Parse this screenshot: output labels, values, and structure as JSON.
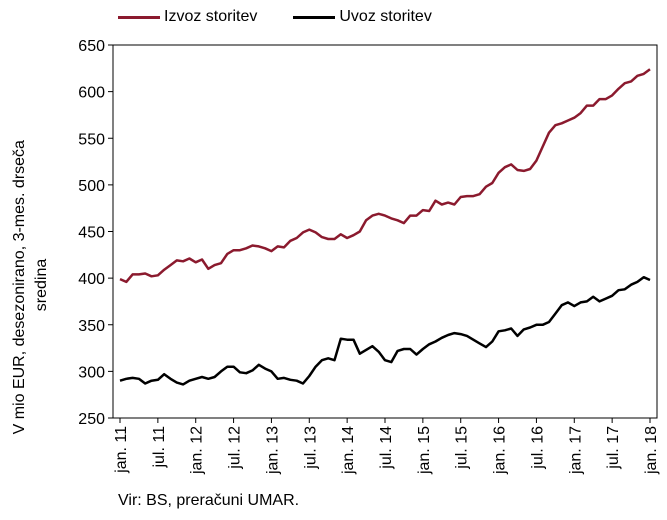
{
  "source_note": "Vir: BS, preračuni UMAR.",
  "chart_data": {
    "type": "line",
    "ylabel_lines": [
      "V mio EUR, desezonirano, 3-mes. drseča",
      "sredina"
    ],
    "ylim": [
      250,
      650
    ],
    "yticks": [
      250,
      300,
      350,
      400,
      450,
      500,
      550,
      600,
      650
    ],
    "grid": false,
    "legend_position": "top-left",
    "x_tick_labels": [
      "jan. 11",
      "jul. 11",
      "jan. 12",
      "jul. 12",
      "jan. 13",
      "jul. 13",
      "jan. 14",
      "jul. 14",
      "jan. 15",
      "jul. 15",
      "jan. 16",
      "jul. 16",
      "jan. 17",
      "jul. 17",
      "jan. 18"
    ],
    "x_start": "2011-01",
    "x_end": "2018-01",
    "series": [
      {
        "name": "Izvoz storitev",
        "color": "#8b1a2e",
        "values": [
          399,
          396,
          404,
          404,
          405,
          402,
          403,
          409,
          414,
          419,
          418,
          421,
          417,
          420,
          410,
          414,
          416,
          426,
          430,
          430,
          432,
          435,
          434,
          432,
          429,
          434,
          433,
          440,
          443,
          449,
          452,
          449,
          444,
          442,
          442,
          447,
          443,
          446,
          450,
          462,
          467,
          469,
          467,
          464,
          462,
          459,
          467,
          467,
          473,
          472,
          483,
          479,
          481,
          479,
          487,
          488,
          488,
          490,
          498,
          502,
          513,
          519,
          522,
          516,
          515,
          517,
          526,
          541,
          556,
          564,
          566,
          569,
          572,
          577,
          585,
          585,
          592,
          592,
          596,
          603,
          609,
          611,
          617,
          619,
          624
        ]
      },
      {
        "name": "Uvoz storitev",
        "color": "#000000",
        "values": [
          290,
          292,
          293,
          292,
          287,
          290,
          291,
          297,
          292,
          288,
          286,
          290,
          292,
          294,
          292,
          294,
          300,
          305,
          305,
          299,
          298,
          301,
          307,
          303,
          300,
          292,
          293,
          291,
          290,
          287,
          295,
          305,
          312,
          314,
          312,
          335,
          334,
          334,
          319,
          323,
          327,
          321,
          312,
          310,
          322,
          324,
          324,
          318,
          324,
          329,
          332,
          336,
          339,
          341,
          340,
          338,
          334,
          330,
          326,
          332,
          343,
          344,
          346,
          338,
          345,
          347,
          350,
          350,
          353,
          362,
          371,
          374,
          370,
          374,
          375,
          380,
          375,
          378,
          381,
          387,
          388,
          393,
          396,
          401,
          398
        ]
      }
    ]
  }
}
